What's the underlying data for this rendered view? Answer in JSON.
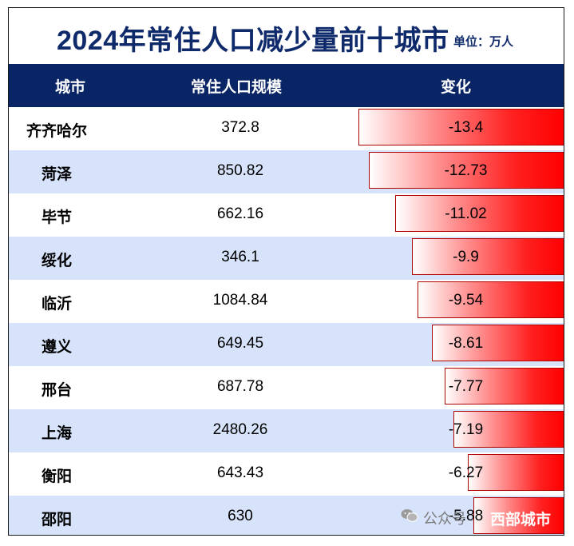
{
  "title": "2024年常住人口减少量前十城市",
  "unit": "单位：万人",
  "headers": {
    "city": "城市",
    "population": "常住人口规模",
    "change": "变化"
  },
  "chart_data": {
    "type": "table",
    "title": "2024年常住人口减少量前十城市",
    "columns": [
      "城市",
      "常住人口规模",
      "变化"
    ],
    "rows": [
      {
        "city": "齐齐哈尔",
        "population": "372.8",
        "change": -13.4
      },
      {
        "city": "菏泽",
        "population": "850.82",
        "change": -12.73
      },
      {
        "city": "毕节",
        "population": "662.16",
        "change": -11.02
      },
      {
        "city": "绥化",
        "population": "346.1",
        "change": -9.9
      },
      {
        "city": "临沂",
        "population": "1084.84",
        "change": -9.54
      },
      {
        "city": "遵义",
        "population": "649.45",
        "change": -8.61
      },
      {
        "city": "邢台",
        "population": "687.78",
        "change": -7.77
      },
      {
        "city": "上海",
        "population": "2480.26",
        "change": -7.19
      },
      {
        "city": "衡阳",
        "population": "643.43",
        "change": -6.27
      },
      {
        "city": "邵阳",
        "population": "630",
        "change": -5.88
      }
    ],
    "bar_color": "#ff0000"
  },
  "watermark": {
    "text": "公众号 ·",
    "brand": "西部城市",
    "icon": "wechat-icon"
  }
}
